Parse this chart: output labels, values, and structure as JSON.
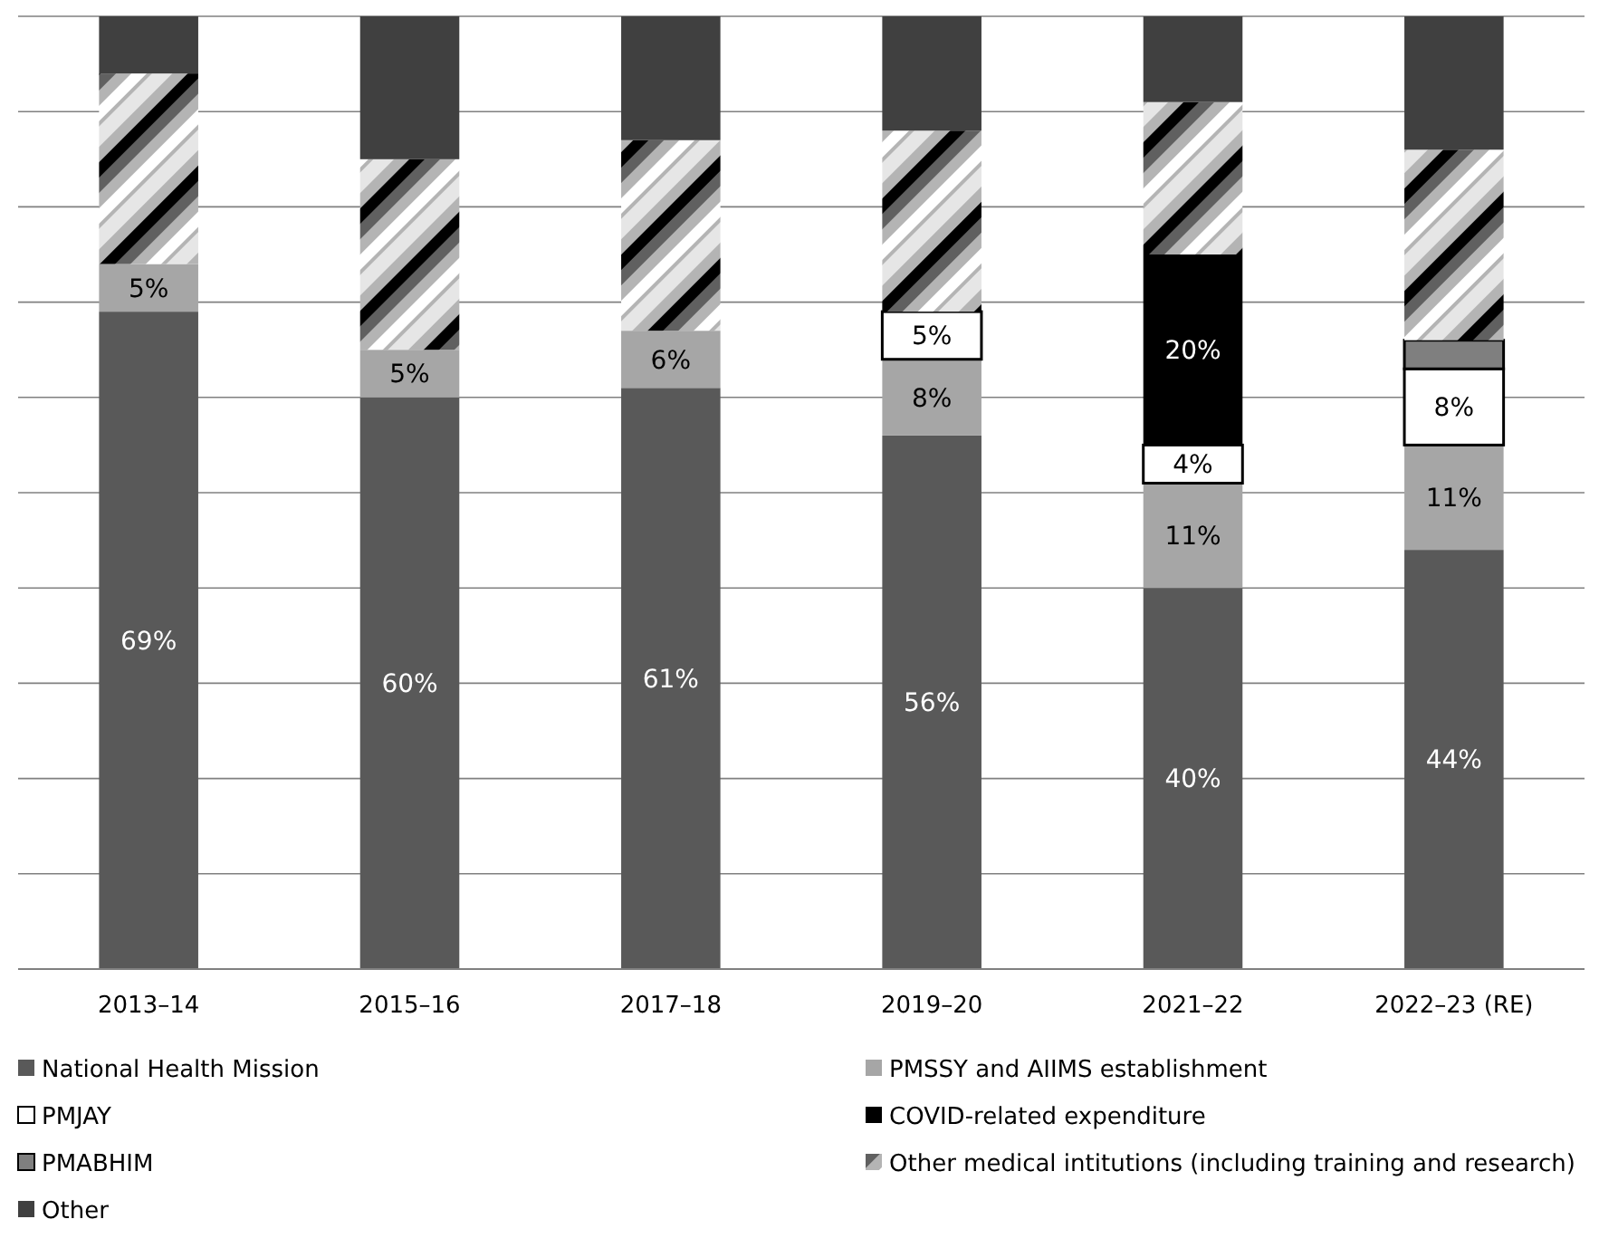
{
  "chart_data": {
    "type": "bar",
    "stacked": true,
    "categories": [
      "2013–14",
      "2015–16",
      "2017–18",
      "2019–20",
      "2021–22",
      "2022–23 (RE)"
    ],
    "ylim": [
      0,
      100
    ],
    "yticks": [
      {
        "value": 0,
        "label": null
      },
      {
        "value": 10,
        "label": null
      },
      {
        "value": 20,
        "label": null
      },
      {
        "value": 30,
        "label": null
      },
      {
        "value": 40,
        "label": null
      },
      {
        "value": 50,
        "label": null
      },
      {
        "value": 60,
        "label": null
      },
      {
        "value": 70,
        "label": null
      },
      {
        "value": 80,
        "label": null
      },
      {
        "value": 90,
        "label": null
      },
      {
        "value": 100,
        "label": null
      }
    ],
    "grid": "y",
    "legend": "bottom",
    "tick_labels": "x",
    "series": [
      {
        "name": "National Health Mission",
        "color": "#595959",
        "values": [
          69,
          60,
          61,
          56,
          40,
          44
        ],
        "value_labels": [
          "69%",
          "60%",
          "61%",
          "56%",
          "40%",
          "44%"
        ]
      },
      {
        "name": "PMSSY and AIIMS establishment",
        "color": "#a6a6a6",
        "values": [
          5,
          5,
          6,
          8,
          11,
          11
        ],
        "value_labels": [
          "5%",
          "5%",
          "6%",
          "8%",
          "11%",
          "11%"
        ]
      },
      {
        "name": "PMJAY",
        "color": "#ffffff",
        "values": [
          null,
          null,
          null,
          5,
          4,
          8
        ],
        "value_labels": [
          null,
          null,
          null,
          "5%",
          "4%",
          "8%"
        ]
      },
      {
        "name": "COVID-related expenditure",
        "color": "#000000",
        "values": [
          null,
          null,
          null,
          null,
          20,
          null
        ],
        "value_labels": [
          null,
          null,
          null,
          null,
          "20%",
          null
        ]
      },
      {
        "name": "PMABHIM",
        "color": "#7f7f7f",
        "values": [
          null,
          null,
          null,
          null,
          null,
          3
        ],
        "value_labels": [
          null,
          null,
          null,
          null,
          null,
          null
        ]
      },
      {
        "name": "Other medical intitutions (including training and research)",
        "color": "#b4b4b4",
        "values": [
          20,
          20,
          20,
          19,
          16,
          20
        ],
        "value_labels": [
          null,
          null,
          null,
          null,
          null,
          null
        ]
      },
      {
        "name": "Other",
        "color": "#404040",
        "values": [
          6,
          15,
          13,
          12,
          9,
          14
        ],
        "value_labels": [
          null,
          null,
          null,
          null,
          null,
          null
        ]
      }
    ]
  }
}
